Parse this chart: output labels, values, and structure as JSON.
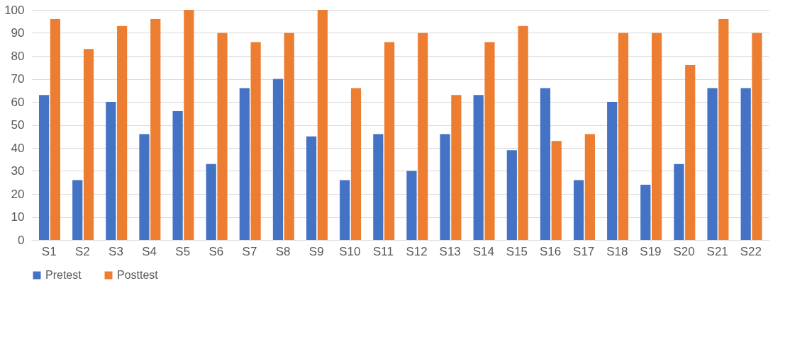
{
  "chart_data": {
    "type": "bar",
    "categories": [
      "S1",
      "S2",
      "S3",
      "S4",
      "S5",
      "S6",
      "S7",
      "S8",
      "S9",
      "S10",
      "S11",
      "S12",
      "S13",
      "S14",
      "S15",
      "S16",
      "S17",
      "S18",
      "S19",
      "S20",
      "S21",
      "S22"
    ],
    "series": [
      {
        "name": "Pretest",
        "color": "#4472c4",
        "values": [
          63,
          26,
          60,
          46,
          56,
          33,
          66,
          70,
          45,
          26,
          46,
          30,
          46,
          63,
          39,
          66,
          26,
          60,
          24,
          33,
          66,
          66
        ]
      },
      {
        "name": "Posttest",
        "color": "#ed7d31",
        "values": [
          96,
          83,
          93,
          96,
          100,
          90,
          86,
          90,
          100,
          66,
          86,
          90,
          63,
          86,
          93,
          43,
          46,
          90,
          90,
          76,
          96,
          90
        ]
      }
    ],
    "ylim": [
      0,
      100
    ],
    "yticks": [
      0,
      10,
      20,
      30,
      40,
      50,
      60,
      70,
      80,
      90,
      100
    ],
    "grid": "y",
    "legend": "bottom"
  }
}
